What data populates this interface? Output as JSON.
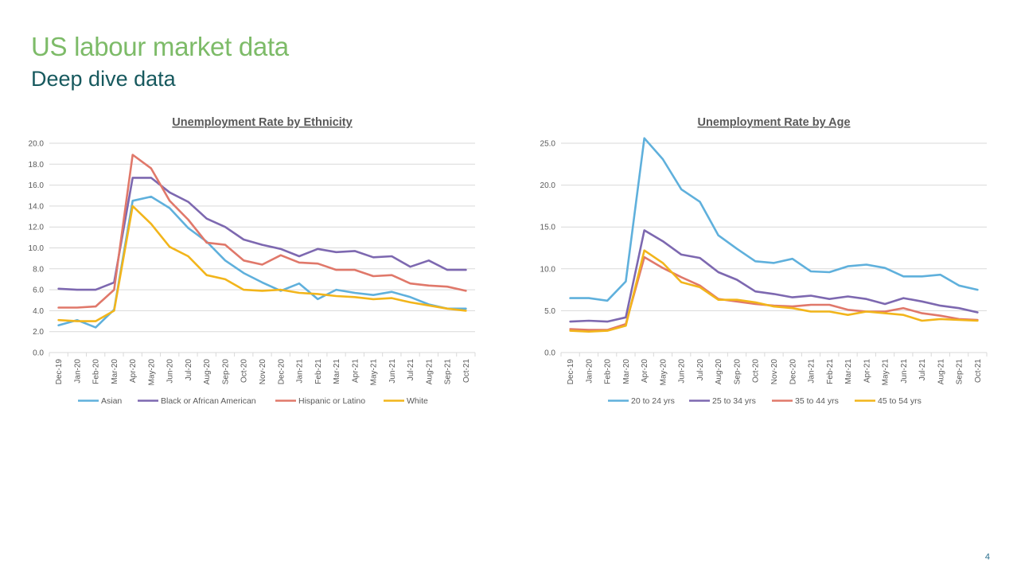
{
  "slide": {
    "title": "US labour market data",
    "subtitle": "Deep dive data",
    "page_number": "4"
  },
  "chart_data": [
    {
      "type": "line",
      "title": "Unemployment Rate by Ethnicity",
      "xlabel": "",
      "ylabel": "",
      "categories": [
        "Dec-19",
        "Jan-20",
        "Feb-20",
        "Mar-20",
        "Apr-20",
        "May-20",
        "Jun-20",
        "Jul-20",
        "Aug-20",
        "Sep-20",
        "Oct-20",
        "Nov-20",
        "Dec-20",
        "Jan-21",
        "Feb-21",
        "Mar-21",
        "Apr-21",
        "May-21",
        "Jun-21",
        "Jul-21",
        "Aug-21",
        "Sep-21",
        "Oct-21"
      ],
      "ylim": [
        0,
        20
      ],
      "yticks": [
        "0.0",
        "2.0",
        "4.0",
        "6.0",
        "8.0",
        "10.0",
        "12.0",
        "14.0",
        "16.0",
        "18.0",
        "20.0"
      ],
      "grid": true,
      "legend_position": "bottom",
      "series": [
        {
          "name": "Asian",
          "color": "#5fb0dc",
          "values": [
            2.6,
            3.1,
            2.4,
            4.1,
            14.5,
            14.9,
            13.8,
            11.9,
            10.6,
            8.8,
            7.6,
            6.7,
            5.9,
            6.6,
            5.1,
            6.0,
            5.7,
            5.5,
            5.8,
            5.3,
            4.6,
            4.2,
            4.2
          ]
        },
        {
          "name": "Black or African American",
          "color": "#7d68b0",
          "values": [
            6.1,
            6.0,
            6.0,
            6.7,
            16.7,
            16.7,
            15.3,
            14.4,
            12.8,
            12.0,
            10.8,
            10.3,
            9.9,
            9.2,
            9.9,
            9.6,
            9.7,
            9.1,
            9.2,
            8.2,
            8.8,
            7.9,
            7.9
          ]
        },
        {
          "name": "Hispanic or Latino",
          "color": "#e0786a",
          "values": [
            4.3,
            4.3,
            4.4,
            6.0,
            18.9,
            17.6,
            14.5,
            12.7,
            10.5,
            10.3,
            8.8,
            8.4,
            9.3,
            8.6,
            8.5,
            7.9,
            7.9,
            7.3,
            7.4,
            6.6,
            6.4,
            6.3,
            5.9
          ]
        },
        {
          "name": "White",
          "color": "#f2b51b",
          "values": [
            3.1,
            3.0,
            3.0,
            4.0,
            14.0,
            12.3,
            10.1,
            9.2,
            7.4,
            7.0,
            6.0,
            5.9,
            6.0,
            5.7,
            5.6,
            5.4,
            5.3,
            5.1,
            5.2,
            4.8,
            4.5,
            4.2,
            4.0
          ]
        }
      ]
    },
    {
      "type": "line",
      "title": "Unemployment Rate by Age",
      "xlabel": "",
      "ylabel": "",
      "categories": [
        "Dec-19",
        "Jan-20",
        "Feb-20",
        "Mar-20",
        "Apr-20",
        "May-20",
        "Jun-20",
        "Jul-20",
        "Aug-20",
        "Sep-20",
        "Oct-20",
        "Nov-20",
        "Dec-20",
        "Jan-21",
        "Feb-21",
        "Mar-21",
        "Apr-21",
        "May-21",
        "Jun-21",
        "Jul-21",
        "Aug-21",
        "Sep-21",
        "Oct-21"
      ],
      "ylim": [
        0,
        26
      ],
      "yticks": [
        "0.0",
        "5.0",
        "10.0",
        "15.0",
        "20.0",
        "25.0"
      ],
      "grid": true,
      "legend_position": "bottom",
      "series": [
        {
          "name": "20 to 24 yrs",
          "color": "#5fb0dc",
          "values": [
            6.5,
            6.5,
            6.2,
            8.5,
            25.6,
            23.1,
            19.5,
            18.0,
            14.0,
            12.4,
            10.9,
            10.7,
            11.2,
            9.7,
            9.6,
            10.3,
            10.5,
            10.1,
            9.1,
            9.1,
            9.3,
            8.0,
            7.5
          ]
        },
        {
          "name": "25 to 34 yrs",
          "color": "#7d68b0",
          "values": [
            3.7,
            3.8,
            3.7,
            4.2,
            14.6,
            13.3,
            11.7,
            11.3,
            9.6,
            8.7,
            7.3,
            7.0,
            6.6,
            6.8,
            6.4,
            6.7,
            6.4,
            5.8,
            6.5,
            6.1,
            5.6,
            5.3,
            4.8
          ]
        },
        {
          "name": "35 to 44 yrs",
          "color": "#e0786a",
          "values": [
            2.8,
            2.7,
            2.7,
            3.4,
            11.4,
            10.1,
            9.0,
            8.0,
            6.4,
            6.1,
            5.8,
            5.6,
            5.5,
            5.7,
            5.7,
            5.1,
            4.9,
            4.9,
            5.3,
            4.7,
            4.4,
            4.0,
            3.9
          ]
        },
        {
          "name": "45 to 54 yrs",
          "color": "#f2b51b",
          "values": [
            2.6,
            2.5,
            2.6,
            3.2,
            12.2,
            10.7,
            8.4,
            7.8,
            6.3,
            6.3,
            6.0,
            5.5,
            5.3,
            4.9,
            4.9,
            4.5,
            4.9,
            4.7,
            4.5,
            3.8,
            4.0,
            3.9,
            3.8
          ]
        }
      ]
    }
  ]
}
